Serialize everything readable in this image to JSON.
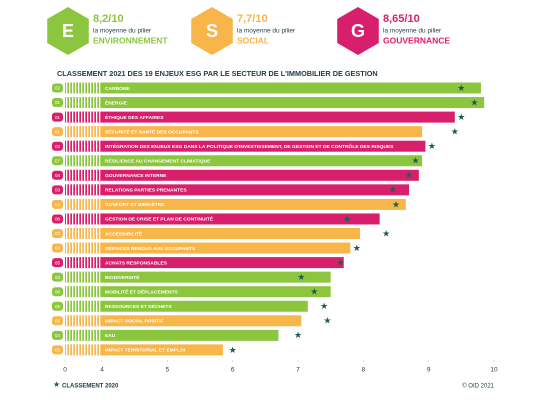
{
  "chart_data": {
    "type": "bar",
    "orientation": "horizontal",
    "title": "CLASSEMENT 2021 DES 19 ENJEUX ESG PAR LE SECTEUR DE L'IMMOBILIER DE GESTION",
    "pillars": [
      {
        "letter": "E",
        "score": "8,2/10",
        "caption": "la moyenne du pilier",
        "name": "ENVIRONNEMENT",
        "color": "#8cc63f"
      },
      {
        "letter": "S",
        "score": "7,7/10",
        "caption": "la moyenne du pilier",
        "name": "SOCIAL",
        "color": "#f8b54a"
      },
      {
        "letter": "G",
        "score": "8,65/10",
        "caption": "la moyenne du pilier",
        "name": "GOUVERNANCE",
        "color": "#d81f6c"
      }
    ],
    "categories": [
      "CARBONE",
      "ÉNERGIE",
      "ÉTHIQUE DES AFFAIRES",
      "SÉCURITÉ ET SANTÉ DES OCCUPANTS",
      "INTÉGRATION DES ENJEUX ESG DANS LA POLITIQUE D'INVESTISSEMENT, DE GESTION ET DE CONTRÔLE DES RISQUES",
      "RÉSILIENCE AU CHANGEMENT CLIMATIQUE",
      "GOUVERNANCE INTERNE",
      "RELATIONS PARTIES PRENANTES",
      "CONFORT ET BIEN-ÊTRE",
      "GESTION DE CRISE ET PLAN DE CONTINUITÉ",
      "ACCESSIBILITÉ",
      "SERVICES RENDUS AUX OCCUPANTS",
      "ACHATS RESPONSABLES",
      "BIODIVERSITÉ",
      "MOBILITÉ ET DÉPLACEMENTS",
      "RESSOURCES ET DÉCHETS",
      "IMPACT SOCIAL POSITIF",
      "EAU",
      "IMPACT TERRITORIAL ET EMPLOI"
    ],
    "codes": [
      "02",
      "01",
      "01",
      "01",
      "02",
      "07",
      "04",
      "03",
      "02",
      "06",
      "03",
      "04",
      "05",
      "03",
      "06",
      "05",
      "06",
      "04",
      "05"
    ],
    "colors": [
      "#8cc63f",
      "#8cc63f",
      "#d81f6c",
      "#f8b54a",
      "#d81f6c",
      "#8cc63f",
      "#d81f6c",
      "#d81f6c",
      "#f8b54a",
      "#d81f6c",
      "#f8b54a",
      "#f8b54a",
      "#d81f6c",
      "#8cc63f",
      "#8cc63f",
      "#8cc63f",
      "#f8b54a",
      "#8cc63f",
      "#f8b54a"
    ],
    "values": [
      9.8,
      9.85,
      9.4,
      8.9,
      8.95,
      8.9,
      8.85,
      8.7,
      8.65,
      8.25,
      7.95,
      7.8,
      7.7,
      7.5,
      7.5,
      7.15,
      7.05,
      6.7,
      5.85
    ],
    "ranking_2020": {
      "name": "CLASSEMENT 2020",
      "color": "#1f5c4a",
      "values": [
        9.5,
        9.7,
        9.5,
        9.4,
        9.05,
        8.8,
        8.7,
        8.45,
        8.5,
        7.75,
        8.35,
        7.9,
        7.65,
        7.05,
        7.25,
        7.4,
        7.45,
        7.0,
        6.0
      ]
    },
    "xlim": [
      0,
      10
    ],
    "axis_break": 4,
    "xticks": [
      0,
      4,
      5,
      6,
      7,
      8,
      9,
      10
    ],
    "source": "© OID 2021"
  }
}
